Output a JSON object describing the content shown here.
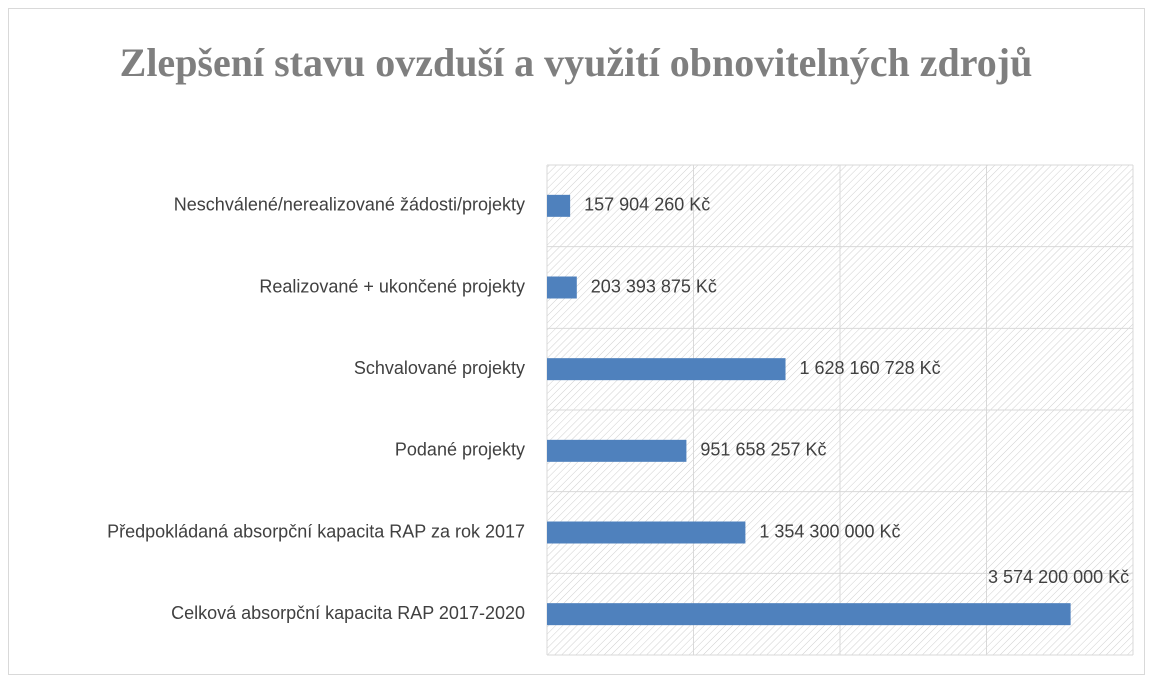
{
  "chart_data": {
    "type": "barh",
    "title": "Zlepšení stavu ovzduší a využití obnovitelných zdrojů",
    "categories": [
      "Neschválené/nerealizované žádosti/projekty",
      "Realizované + ukončené projekty",
      "Schvalované projekty",
      "Podané projekty",
      "Předpokládaná absorpční kapacita RAP za rok 2017",
      "Celková absorpční kapacita RAP 2017-2020"
    ],
    "values": [
      157904260,
      203393875,
      1628160728,
      951658257,
      1354300000,
      3574200000
    ],
    "value_labels": [
      "157 904 260 Kč",
      "203 393 875 Kč",
      "1 628 160 728 Kč",
      "951 658 257 Kč",
      "1 354 300 000 Kč",
      "3 574 200 000 Kč"
    ],
    "color": "#4f81bd",
    "xlim": [
      0,
      4000000000
    ],
    "xticks": [
      0,
      1000000000,
      2000000000,
      3000000000,
      4000000000
    ],
    "grid": true
  }
}
